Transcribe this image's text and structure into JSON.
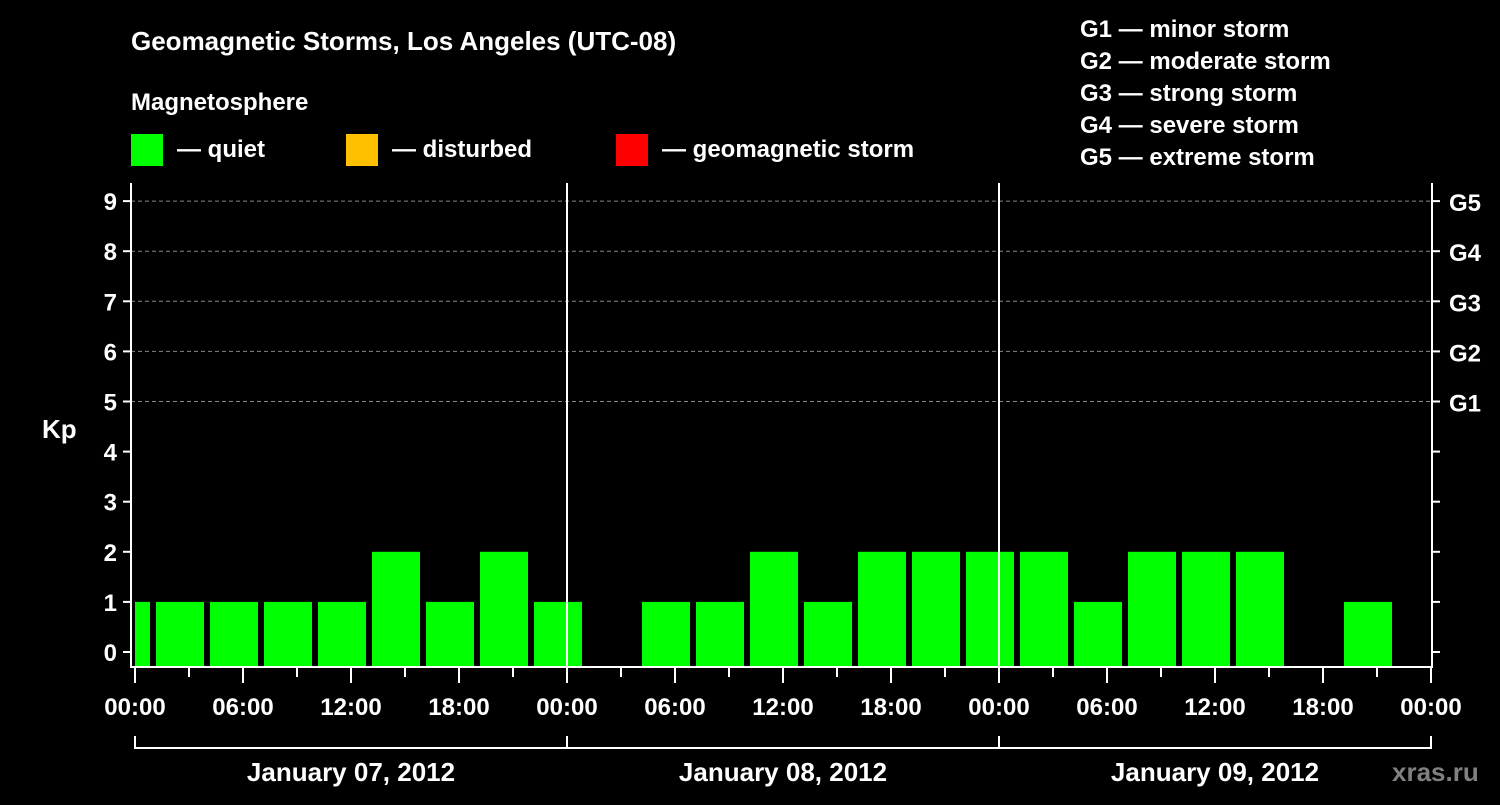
{
  "chart_data": {
    "type": "bar",
    "title": "Geomagnetic Storms, Los Angeles (UTC-08)",
    "legend_title": "Magnetosphere",
    "legend": [
      {
        "label": "— quiet",
        "color": "#00ff00"
      },
      {
        "label": "— disturbed",
        "color": "#ffc000"
      },
      {
        "label": "— geomagnetic storm",
        "color": "#ff0000"
      }
    ],
    "storm_scale": [
      "G1 — minor storm",
      "G2 — moderate storm",
      "G3 — strong storm",
      "G4 — severe storm",
      "G5 — extreme storm"
    ],
    "ylabel": "Kp",
    "ylim": [
      0,
      9
    ],
    "yticks": [
      "0",
      "1",
      "2",
      "3",
      "4",
      "5",
      "6",
      "7",
      "8",
      "9"
    ],
    "right_ticks": [
      {
        "kp": 5,
        "label": "G1"
      },
      {
        "kp": 6,
        "label": "G2"
      },
      {
        "kp": 7,
        "label": "G3"
      },
      {
        "kp": 8,
        "label": "G4"
      },
      {
        "kp": 9,
        "label": "G5"
      }
    ],
    "xtick_labels": [
      "00:00",
      "06:00",
      "12:00",
      "18:00",
      "00:00",
      "06:00",
      "12:00",
      "18:00",
      "00:00",
      "06:00",
      "12:00",
      "18:00",
      "00:00"
    ],
    "days": [
      "January 07, 2012",
      "January 08, 2012",
      "January 09, 2012"
    ],
    "bar_interval_hours": 3,
    "first_bar_start_hour": -2,
    "values": [
      1,
      1,
      1,
      1,
      1,
      2,
      1,
      2,
      1,
      null,
      1,
      1,
      2,
      1,
      2,
      2,
      2,
      2,
      1,
      2,
      2,
      2,
      null,
      1,
      null
    ],
    "grid": "dashed at Kp 5-9",
    "watermark": "xras.ru"
  }
}
